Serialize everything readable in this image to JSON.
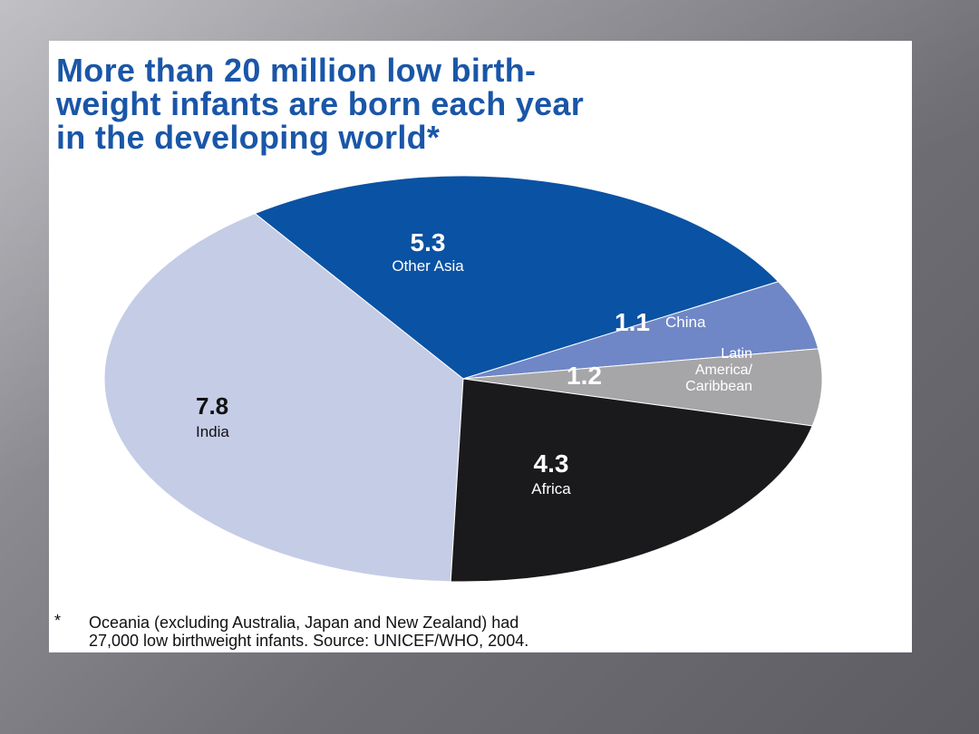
{
  "slide": {
    "background_color": "#6e6e74",
    "panel_color": "#ffffff",
    "title_color": "#1a56a8"
  },
  "figure": {
    "footnote_marker": "*",
    "footnote_line1": "Oceania (excluding Australia, Japan and New Zealand) had",
    "footnote_line2": "27,000 low birthweight infants. Source: UNICEF/WHO, 2004."
  },
  "chart_data": {
    "type": "pie",
    "title": "More than 20 million low birth-\nweight infants are born each year\nin the developing world*",
    "units": "millions",
    "direction": "clockwise",
    "start_angle_deg": 180,
    "slices": [
      {
        "label": "India",
        "value": 7.8,
        "color": "#c5cce6",
        "value_color": "#111111",
        "name_color": "#111111"
      },
      {
        "label": "Other Asia",
        "value": 5.3,
        "color": "#0a52a3",
        "value_color": "#ffffff",
        "name_color": "#ffffff"
      },
      {
        "label": "China",
        "value": 1.1,
        "color": "#6f87c6",
        "value_color": "#ffffff",
        "name_color": "#ffffff"
      },
      {
        "label": "Latin America/ Caribbean",
        "value": 1.2,
        "color": "#a6a6a8",
        "value_color": "#ffffff",
        "name_color": "#ffffff"
      },
      {
        "label": "Africa",
        "value": 4.3,
        "color": "#1a1a1c",
        "value_color": "#ffffff",
        "name_color": "#ffffff"
      }
    ]
  }
}
